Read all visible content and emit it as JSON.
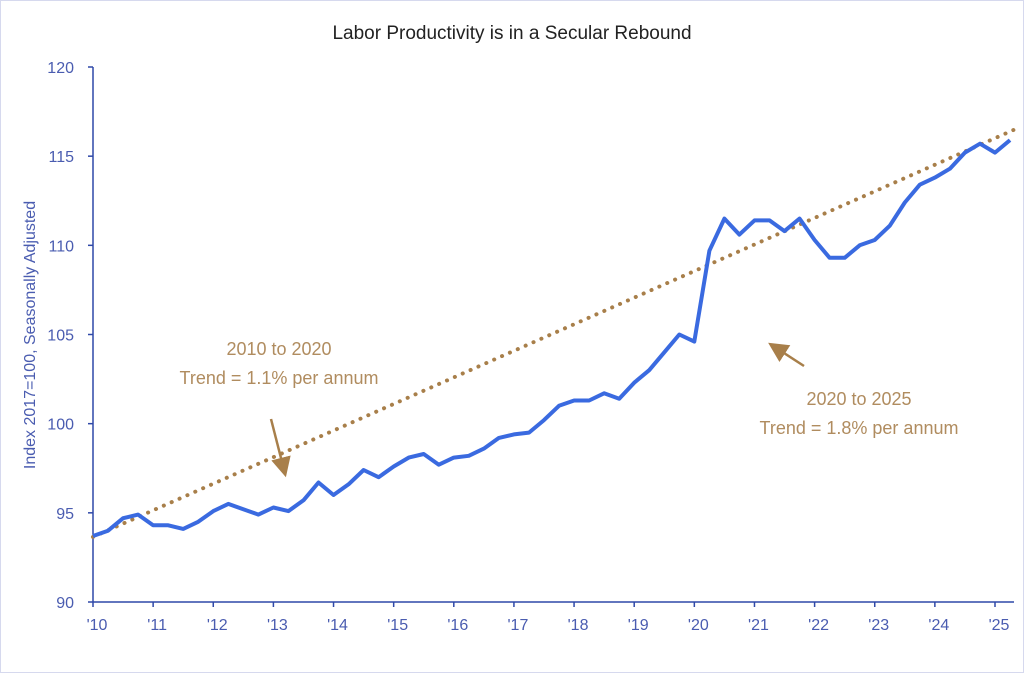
{
  "chart_data": {
    "type": "line",
    "title": "Labor Productivity is in a Secular Rebound",
    "xlabel": "",
    "ylabel": "Index 2017=100, Seasonally Adjusted",
    "ylim": [
      90,
      120
    ],
    "yticks": [
      90,
      95,
      100,
      105,
      110,
      115,
      120
    ],
    "xlim": [
      2010,
      2025.33
    ],
    "xticks": [
      2010,
      2011,
      2012,
      2013,
      2014,
      2015,
      2016,
      2017,
      2018,
      2019,
      2020,
      2021,
      2022,
      2023,
      2024,
      2025
    ],
    "xtick_labels": [
      "'10",
      "'11",
      "'12",
      "'13",
      "'14",
      "'15",
      "'16",
      "'17",
      "'18",
      "'19",
      "'20",
      "'21",
      "'22",
      "'23",
      "'24",
      "'25"
    ],
    "grid": false,
    "series": [
      {
        "name": "Labor Productivity",
        "color": "#3a6ae0",
        "x_start": 2010.0,
        "x_step": 0.25,
        "values": [
          93.7,
          94.0,
          94.7,
          94.9,
          94.3,
          94.3,
          94.1,
          94.5,
          95.1,
          95.5,
          95.2,
          94.9,
          95.3,
          95.1,
          95.7,
          96.7,
          96.0,
          96.6,
          97.4,
          97.0,
          97.6,
          98.1,
          98.3,
          97.7,
          98.1,
          98.2,
          98.6,
          99.2,
          99.4,
          99.5,
          100.2,
          101.0,
          101.3,
          101.3,
          101.7,
          101.4,
          102.3,
          103.0,
          104.0,
          105.0,
          104.6,
          109.7,
          111.5,
          110.6,
          111.4,
          111.4,
          110.8,
          111.5,
          110.3,
          109.3,
          109.3,
          110.0,
          110.3,
          111.1,
          112.4,
          113.4,
          113.8,
          114.3,
          115.2,
          115.7,
          115.2,
          115.9
        ]
      },
      {
        "name": "Trend",
        "color": "#a87f4a",
        "style": "dotted",
        "x": [
          2010.0,
          2025.33
        ],
        "values": [
          93.65,
          116.5
        ]
      }
    ],
    "annotations": [
      {
        "lines": [
          "2010 to 2020",
          "Trend =  1.1% per annum"
        ],
        "arrow_to": [
          2013.2,
          97.2
        ]
      },
      {
        "lines": [
          "2020 to 2025",
          "Trend =  1.8% per annum"
        ],
        "arrow_to": [
          2021.4,
          104.4
        ]
      }
    ]
  }
}
